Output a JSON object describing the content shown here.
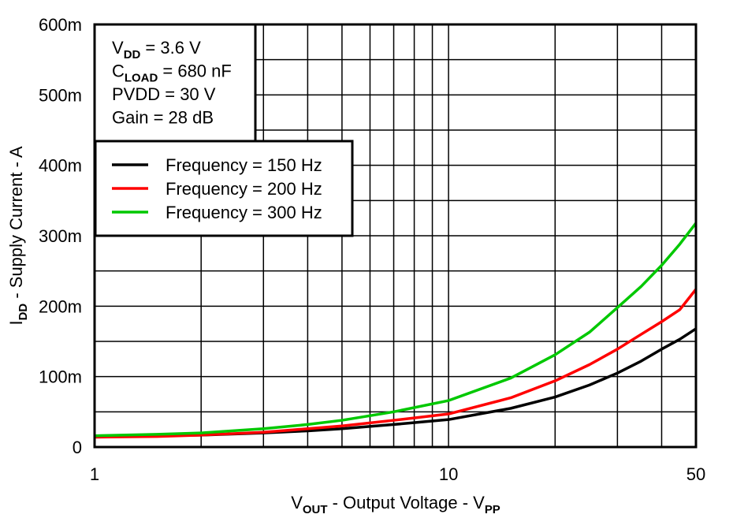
{
  "chart_data": {
    "type": "line",
    "x_scale": "log",
    "xlim": [
      1,
      50
    ],
    "ylim": [
      0,
      0.6
    ],
    "grid": true,
    "x_ticks": [
      {
        "v": 1,
        "label": "1"
      },
      {
        "v": 10,
        "label": "10"
      },
      {
        "v": 50,
        "label": "50"
      }
    ],
    "y_ticks": [
      {
        "v": 0,
        "label": "0"
      },
      {
        "v": 0.1,
        "label": "100m"
      },
      {
        "v": 0.2,
        "label": "200m"
      },
      {
        "v": 0.3,
        "label": "300m"
      },
      {
        "v": 0.4,
        "label": "400m"
      },
      {
        "v": 0.5,
        "label": "500m"
      },
      {
        "v": 0.6,
        "label": "600m"
      }
    ],
    "xlabel": {
      "main": "V",
      "sub": "OUT",
      "rest": " - Output Voltage - V",
      "sub2": "PP"
    },
    "ylabel": {
      "main": "I",
      "sub": "DD",
      "rest": " - Supply Current - A"
    },
    "annotation": [
      {
        "main": "V",
        "sub": "DD",
        "rest": " = 3.6 V"
      },
      {
        "main": "C",
        "sub": "LOAD",
        "rest": " = 680 nF"
      },
      {
        "main": "PVDD = 30 V",
        "sub": "",
        "rest": ""
      },
      {
        "main": "Gain = 28 dB",
        "sub": "",
        "rest": ""
      }
    ],
    "legend_placement": "top-left",
    "x": [
      1,
      1.5,
      2,
      3,
      4,
      5,
      7,
      10,
      15,
      20,
      25,
      30,
      35,
      40,
      45,
      50
    ],
    "series": [
      {
        "name": "Frequency = 150 Hz",
        "color": "#000000",
        "values": [
          0.015,
          0.016,
          0.017,
          0.02,
          0.023,
          0.026,
          0.032,
          0.039,
          0.055,
          0.071,
          0.088,
          0.105,
          0.122,
          0.139,
          0.153,
          0.168
        ]
      },
      {
        "name": "Frequency = 200 Hz",
        "color": "#ff0000",
        "values": [
          0.014,
          0.015,
          0.017,
          0.021,
          0.026,
          0.03,
          0.038,
          0.047,
          0.07,
          0.094,
          0.117,
          0.139,
          0.16,
          0.178,
          0.195,
          0.224
        ]
      },
      {
        "name": "Frequency = 300 Hz",
        "color": "#00c800",
        "values": [
          0.016,
          0.018,
          0.02,
          0.026,
          0.032,
          0.038,
          0.05,
          0.066,
          0.098,
          0.131,
          0.163,
          0.198,
          0.228,
          0.258,
          0.288,
          0.318
        ]
      }
    ]
  }
}
